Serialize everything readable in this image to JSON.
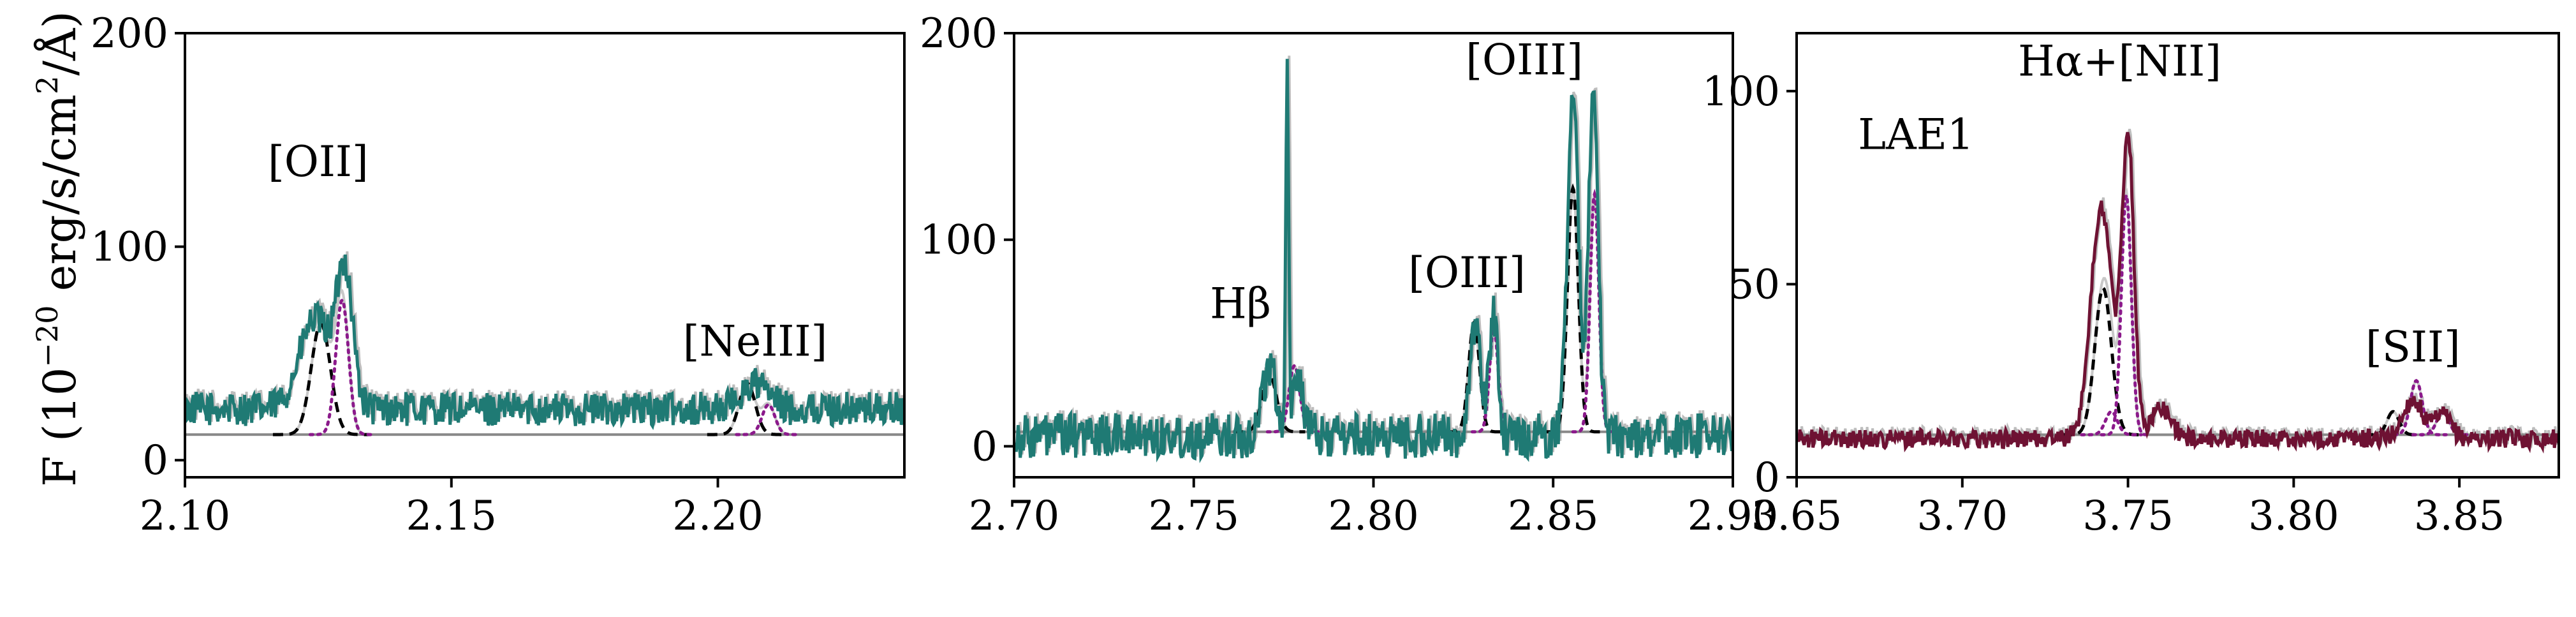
{
  "figure": {
    "ylabel_prefix": "F (10",
    "ylabel_exp": "−20",
    "ylabel_mid": " erg/s/cm",
    "ylabel_exp2": "2",
    "ylabel_suffix": "/Å)"
  },
  "chart_data": [
    {
      "type": "line",
      "panel": "left",
      "xlim": [
        2.1,
        2.235
      ],
      "ylim": [
        -8,
        200
      ],
      "xticks": [
        "2.10",
        "2.15",
        "2.20"
      ],
      "xtick_values": [
        2.1,
        2.15,
        2.2
      ],
      "yticks": [
        "0",
        "100",
        "200"
      ],
      "ytick_values": [
        0,
        100,
        200
      ],
      "continuum": 12,
      "data_color": "#1f7a74",
      "annotations": [
        {
          "text": "[OII]",
          "x": 2.125,
          "y": 133
        },
        {
          "text": "[NeIII]",
          "x": 2.207,
          "y": 49
        }
      ],
      "components": [
        {
          "style": "black-dashed",
          "center": 2.1255,
          "sigma": 0.0018,
          "amp": 52
        },
        {
          "style": "purple-dotted",
          "center": 2.1295,
          "sigma": 0.0012,
          "amp": 63
        },
        {
          "style": "black-dashed",
          "center": 2.2055,
          "sigma": 0.0015,
          "amp": 24
        },
        {
          "style": "purple-dotted",
          "center": 2.2095,
          "sigma": 0.0012,
          "amp": 14
        }
      ],
      "observed": {
        "base": 24,
        "noise": 8,
        "peaks": [
          {
            "center": 2.1245,
            "sigma": 0.003,
            "amp": 42
          },
          {
            "center": 2.13,
            "sigma": 0.0015,
            "amp": 62
          },
          {
            "center": 2.207,
            "sigma": 0.0025,
            "amp": 12
          }
        ]
      }
    },
    {
      "type": "line",
      "panel": "middle",
      "xlim": [
        2.7,
        2.9
      ],
      "ylim": [
        -15,
        200
      ],
      "xticks": [
        "2.70",
        "2.75",
        "2.80",
        "2.85",
        "2.90"
      ],
      "xtick_values": [
        2.7,
        2.75,
        2.8,
        2.85,
        2.9
      ],
      "yticks": [
        "0",
        "100",
        "200"
      ],
      "ytick_values": [
        0,
        100,
        200
      ],
      "continuum": 7,
      "data_color": "#1f7a74",
      "annotations": [
        {
          "text": "Hβ",
          "x": 2.763,
          "y": 62
        },
        {
          "text": "[OIII]",
          "x": 2.826,
          "y": 77
        },
        {
          "text": "[OIII]",
          "x": 2.842,
          "y": 180
        }
      ],
      "components": [
        {
          "style": "black-dashed",
          "center": 2.771,
          "sigma": 0.002,
          "amp": 28
        },
        {
          "style": "purple-dotted",
          "center": 2.778,
          "sigma": 0.0015,
          "amp": 32
        },
        {
          "style": "black-dashed",
          "center": 2.828,
          "sigma": 0.0015,
          "amp": 53
        },
        {
          "style": "purple-dotted",
          "center": 2.8335,
          "sigma": 0.0012,
          "amp": 50
        },
        {
          "style": "black-dashed",
          "center": 2.8555,
          "sigma": 0.0015,
          "amp": 118
        },
        {
          "style": "purple-dotted",
          "center": 2.8615,
          "sigma": 0.0012,
          "amp": 115
        }
      ],
      "observed": {
        "base": 5,
        "noise": 11,
        "peaks": [
          {
            "center": 2.771,
            "sigma": 0.002,
            "amp": 33
          },
          {
            "center": 2.776,
            "sigma": 0.0004,
            "amp": 172
          },
          {
            "center": 2.779,
            "sigma": 0.0015,
            "amp": 30
          },
          {
            "center": 2.8285,
            "sigma": 0.0015,
            "amp": 52
          },
          {
            "center": 2.8335,
            "sigma": 0.0012,
            "amp": 58
          },
          {
            "center": 2.8555,
            "sigma": 0.0016,
            "amp": 160
          },
          {
            "center": 2.8612,
            "sigma": 0.0013,
            "amp": 176
          }
        ]
      }
    },
    {
      "type": "line",
      "panel": "right",
      "xlim": [
        3.65,
        3.88
      ],
      "ylim": [
        0,
        115
      ],
      "xticks": [
        "3.65",
        "3.70",
        "3.75",
        "3.80",
        "3.85"
      ],
      "xtick_values": [
        3.65,
        3.7,
        3.75,
        3.8,
        3.85
      ],
      "yticks": [
        "0",
        "50",
        "100"
      ],
      "ytick_values": [
        0,
        50,
        100
      ],
      "continuum": 11,
      "data_color": "#6e1233",
      "annotations": [
        {
          "text": "LAE1",
          "x": 3.686,
          "y": 85
        },
        {
          "text": "Hα+[NII]",
          "x": 3.7475,
          "y": 104
        },
        {
          "text": "[SII]",
          "x": 3.836,
          "y": 30
        }
      ],
      "components": [
        {
          "style": "black-dashed",
          "center": 3.7425,
          "sigma": 0.0025,
          "amp": 38
        },
        {
          "style": "purple-dotted",
          "center": 3.7495,
          "sigma": 0.0015,
          "amp": 62
        },
        {
          "style": "purple-dotted",
          "center": 3.745,
          "sigma": 0.0018,
          "amp": 6
        },
        {
          "style": "black-dashed",
          "center": 3.83,
          "sigma": 0.0018,
          "amp": 6
        },
        {
          "style": "purple-dotted",
          "center": 3.837,
          "sigma": 0.0018,
          "amp": 14
        },
        {
          "style": "purple-dotted",
          "center": 3.845,
          "sigma": 0.0018,
          "amp": 6
        }
      ],
      "observed": {
        "base": 10,
        "noise": 2.4,
        "peaks": [
          {
            "center": 3.742,
            "sigma": 0.0032,
            "amp": 60
          },
          {
            "center": 3.75,
            "sigma": 0.0018,
            "amp": 78
          },
          {
            "center": 3.76,
            "sigma": 0.003,
            "amp": 8
          },
          {
            "center": 3.836,
            "sigma": 0.003,
            "amp": 10
          },
          {
            "center": 3.845,
            "sigma": 0.0025,
            "amp": 6
          }
        ]
      }
    }
  ]
}
